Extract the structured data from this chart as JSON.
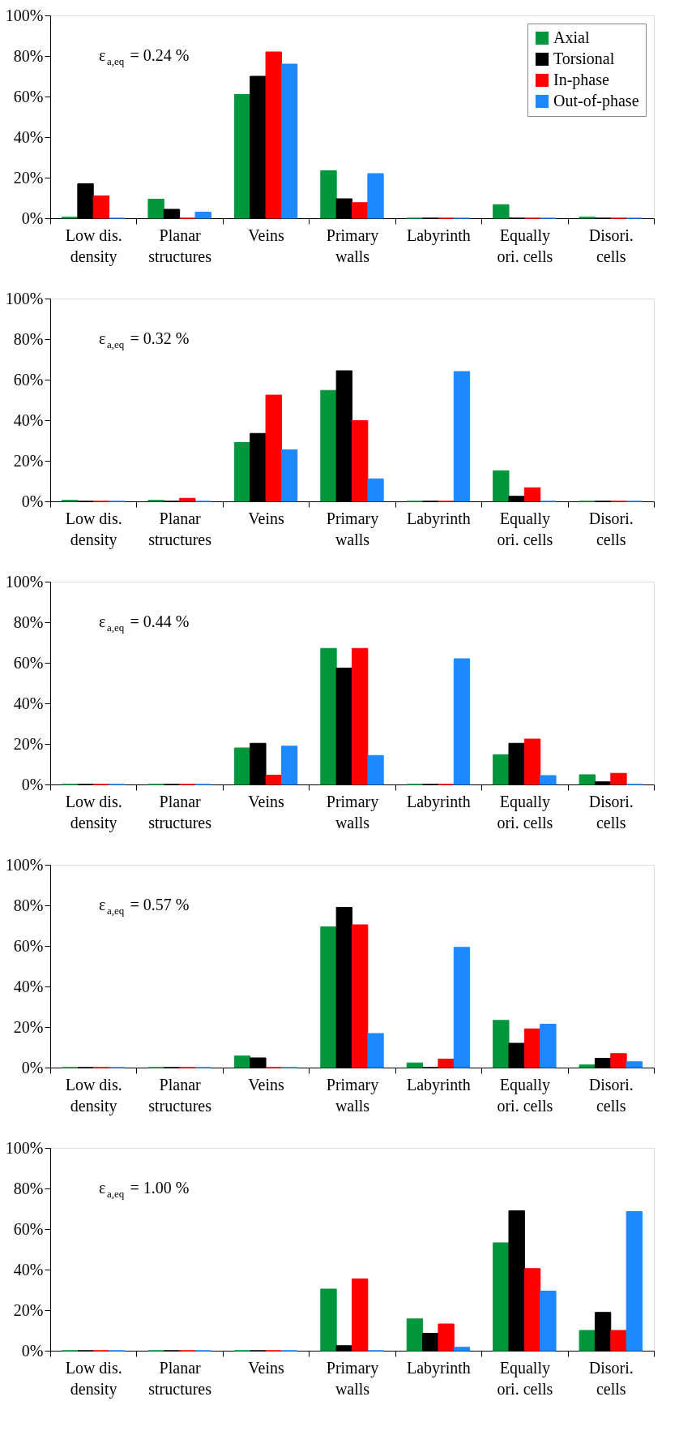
{
  "chart_data": [
    {
      "type": "bar",
      "categories": [
        "Low dis.\ndensity",
        "Planar\nstructures",
        "Veins",
        "Primary\nwalls",
        "Labyrinth",
        "Equally\nori. cells",
        "Disori.\ncells"
      ],
      "annotations": [
        "ε$_{a,eq}$ = 0.24 %"
      ],
      "series": [
        {
          "name": "Axial",
          "color": "#00963c",
          "values": [
            0.5,
            9.4,
            61,
            23.4,
            0,
            6.7,
            0.5
          ]
        },
        {
          "name": "Torsional",
          "color": "#000000",
          "values": [
            17,
            4.4,
            70,
            9.6,
            0,
            0,
            0
          ]
        },
        {
          "name": "In-phase",
          "color": "#ff0000",
          "values": [
            11,
            0,
            82,
            7.7,
            0,
            0,
            0
          ]
        },
        {
          "name": "Out-of-phase",
          "color": "#1e88ff",
          "values": [
            0,
            3,
            76,
            22,
            0,
            0,
            0
          ]
        }
      ],
      "ylim": [
        0,
        100
      ],
      "yticks": [
        {
          "value": 0,
          "label": "0%"
        },
        {
          "value": 20,
          "label": "20%"
        },
        {
          "value": 40,
          "label": "40%"
        },
        {
          "value": 60,
          "label": "60%"
        },
        {
          "value": 80,
          "label": "80%"
        },
        {
          "value": 100,
          "label": "100%"
        }
      ],
      "legend": "top right",
      "grid": false
    },
    {
      "type": "bar",
      "categories": [
        "Low dis.\ndensity",
        "Planar\nstructures",
        "Veins",
        "Primary\nwalls",
        "Labyrinth",
        "Equally\nori. cells",
        "Disori.\ncells"
      ],
      "annotations": [
        "ε$_{a,eq}$ = 0.32 %"
      ],
      "series": [
        {
          "color": "#00963c",
          "values": [
            0.5,
            0.5,
            29,
            54.7,
            0,
            15.1,
            0
          ]
        },
        {
          "color": "#000000",
          "values": [
            0,
            0,
            33.5,
            64.4,
            0,
            2.5,
            0
          ]
        },
        {
          "color": "#ff0000",
          "values": [
            0,
            1.5,
            52.4,
            39.8,
            0,
            6.7,
            0
          ]
        },
        {
          "color": "#1e88ff",
          "values": [
            0,
            0,
            25.4,
            11.1,
            64,
            0,
            0
          ]
        }
      ],
      "ylim": [
        0,
        100
      ],
      "yticks": [
        {
          "value": 0,
          "label": "0%"
        },
        {
          "value": 20,
          "label": "20%"
        },
        {
          "value": 40,
          "label": "40%"
        },
        {
          "value": 60,
          "label": "60%"
        },
        {
          "value": 80,
          "label": "80%"
        },
        {
          "value": 100,
          "label": "100%"
        }
      ],
      "legend": false,
      "grid": false
    },
    {
      "type": "bar",
      "categories": [
        "Low dis.\ndensity",
        "Planar\nstructures",
        "Veins",
        "Primary\nwalls",
        "Labyrinth",
        "Equally\nori. cells",
        "Disori.\ncells"
      ],
      "annotations": [
        "ε$_{a,eq}$ = 0.44 %"
      ],
      "series": [
        {
          "color": "#00963c",
          "values": [
            0,
            0,
            18,
            67.1,
            0,
            14.7,
            4.8
          ]
        },
        {
          "color": "#000000",
          "values": [
            0,
            0,
            20.3,
            57.4,
            0,
            20.3,
            1.3
          ]
        },
        {
          "color": "#ff0000",
          "values": [
            0,
            0,
            4.6,
            67.1,
            0,
            22.4,
            5.5
          ]
        },
        {
          "color": "#1e88ff",
          "values": [
            0,
            0,
            18.9,
            14.3,
            62,
            4.4,
            0
          ]
        }
      ],
      "ylim": [
        0,
        100
      ],
      "yticks": [
        {
          "value": 0,
          "label": "0%"
        },
        {
          "value": 20,
          "label": "20%"
        },
        {
          "value": 40,
          "label": "40%"
        },
        {
          "value": 60,
          "label": "60%"
        },
        {
          "value": 80,
          "label": "80%"
        },
        {
          "value": 100,
          "label": "100%"
        }
      ],
      "legend": false,
      "grid": false
    },
    {
      "type": "bar",
      "categories": [
        "Low dis.\ndensity",
        "Planar\nstructures",
        "Veins",
        "Primary\nwalls",
        "Labyrinth",
        "Equally\nori. cells",
        "Disori.\ncells"
      ],
      "annotations": [
        "ε$_{a,eq}$ = 0.57 %"
      ],
      "series": [
        {
          "color": "#00963c",
          "values": [
            0,
            0,
            5.7,
            69.4,
            2.3,
            23.3,
            1.3
          ]
        },
        {
          "color": "#000000",
          "values": [
            0,
            0,
            4.8,
            79,
            0,
            12,
            4.6
          ]
        },
        {
          "color": "#ff0000",
          "values": [
            0,
            0,
            0,
            70.4,
            4.2,
            19.1,
            6.9
          ]
        },
        {
          "color": "#1e88ff",
          "values": [
            0,
            0,
            0,
            16.8,
            59.3,
            21.4,
            2.9
          ]
        }
      ],
      "ylim": [
        0,
        100
      ],
      "yticks": [
        {
          "value": 0,
          "label": "0%"
        },
        {
          "value": 20,
          "label": "20%"
        },
        {
          "value": 40,
          "label": "40%"
        },
        {
          "value": 60,
          "label": "60%"
        },
        {
          "value": 80,
          "label": "80%"
        },
        {
          "value": 100,
          "label": "100%"
        }
      ],
      "legend": false,
      "grid": false
    },
    {
      "type": "bar",
      "categories": [
        "Low dis.\ndensity",
        "Planar\nstructures",
        "Veins",
        "Primary\nwalls",
        "Labyrinth",
        "Equally\nori. cells",
        "Disori.\ncells"
      ],
      "annotations": [
        "ε$_{a,eq}$ = 1.00 %"
      ],
      "series": [
        {
          "color": "#00963c",
          "values": [
            0,
            0,
            0,
            30.4,
            15.7,
            53.2,
            10
          ]
        },
        {
          "color": "#000000",
          "values": [
            0,
            0,
            0,
            2.5,
            8.6,
            69,
            18.9
          ]
        },
        {
          "color": "#ff0000",
          "values": [
            0,
            0,
            0,
            35.4,
            13.2,
            40.5,
            10
          ]
        },
        {
          "color": "#1e88ff",
          "values": [
            0,
            0,
            0,
            0,
            1.7,
            29.4,
            68.6
          ]
        }
      ],
      "ylim": [
        0,
        100
      ],
      "yticks": [
        {
          "value": 0,
          "label": "0%"
        },
        {
          "value": 20,
          "label": "20%"
        },
        {
          "value": 40,
          "label": "40%"
        },
        {
          "value": 60,
          "label": "60%"
        },
        {
          "value": 80,
          "label": "80%"
        },
        {
          "value": 100,
          "label": "100%"
        }
      ],
      "legend": false,
      "grid": false
    }
  ]
}
